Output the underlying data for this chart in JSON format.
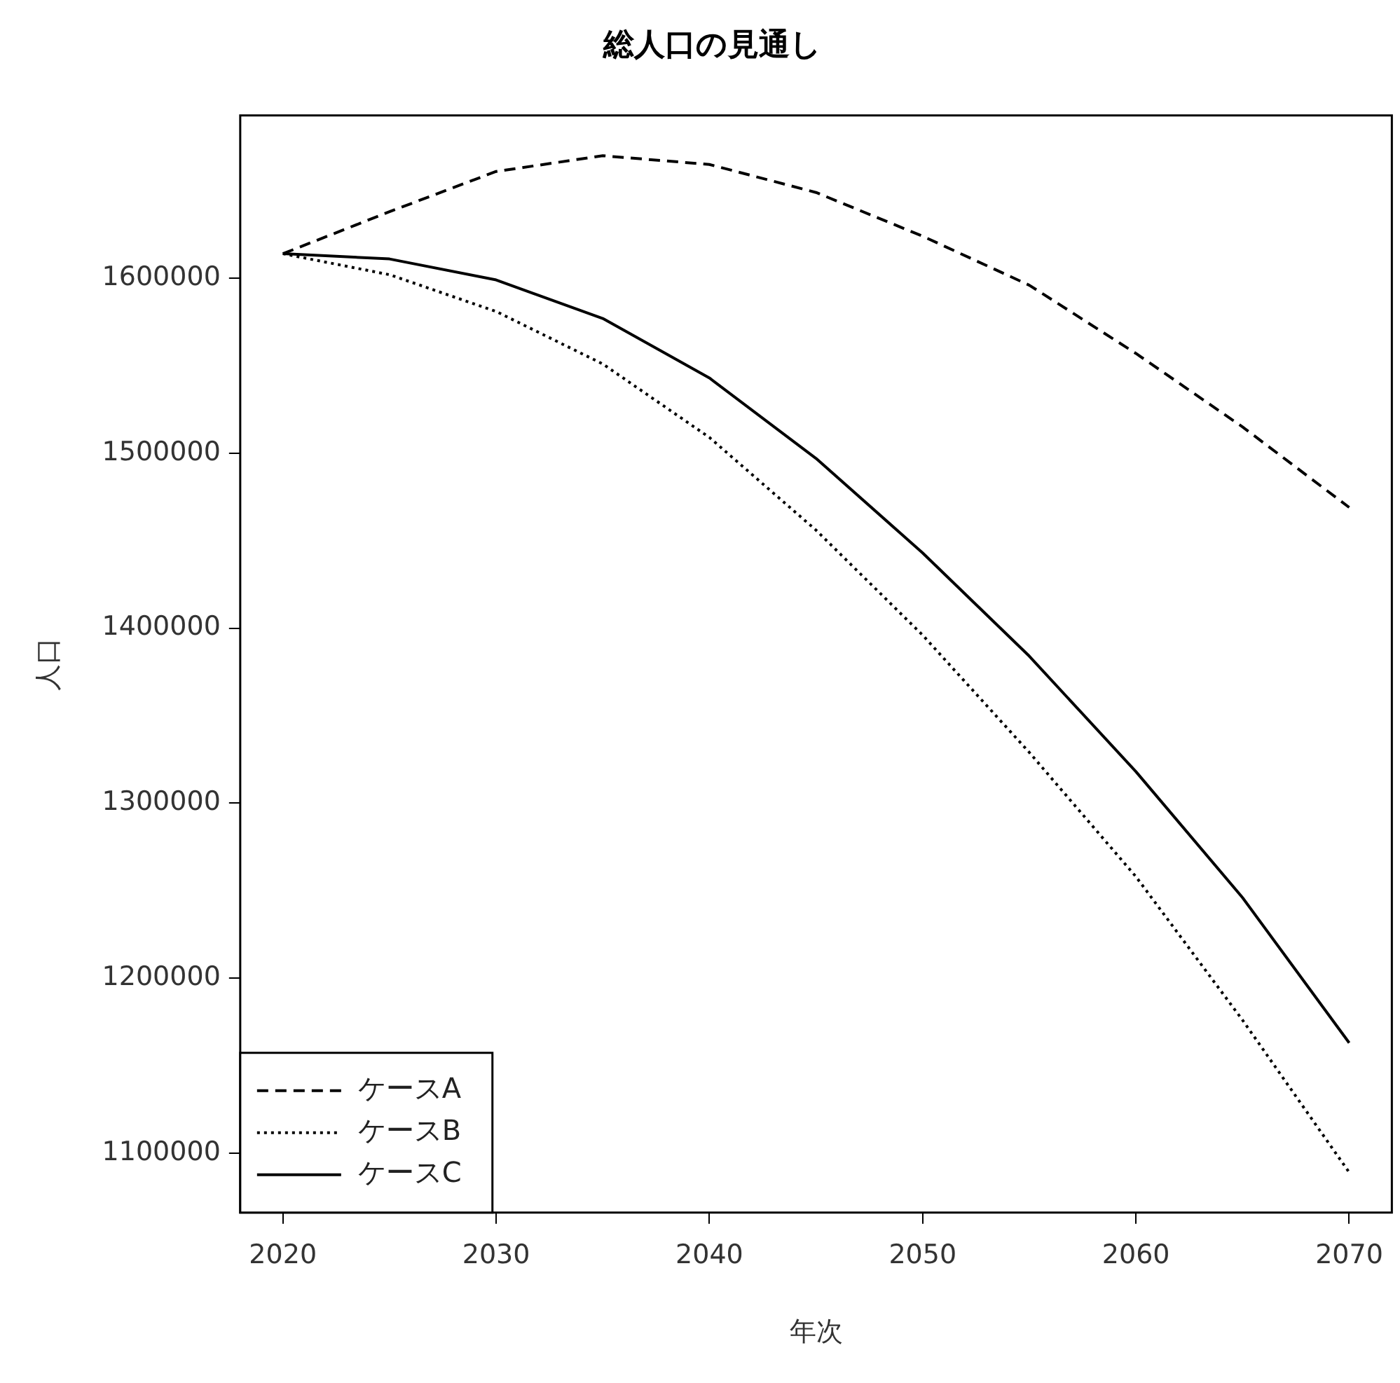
{
  "chart_data": {
    "type": "line",
    "title": "総人口の見通し",
    "xlabel": "年次",
    "ylabel": "人口",
    "x": [
      2020,
      2025,
      2030,
      2035,
      2040,
      2045,
      2050,
      2055,
      2060,
      2065,
      2070
    ],
    "series": [
      {
        "name": "ケースA",
        "color": "#000000",
        "line_style": "dashed",
        "values": [
          1614000,
          1638000,
          1661000,
          1670000,
          1665000,
          1649000,
          1624000,
          1596000,
          1557000,
          1515000,
          1469000
        ]
      },
      {
        "name": "ケースB",
        "color": "#000000",
        "line_style": "dotted",
        "values": [
          1614000,
          1602000,
          1581000,
          1551000,
          1509000,
          1456000,
          1396000,
          1329000,
          1258000,
          1176000,
          1089000
        ]
      },
      {
        "name": "ケースC",
        "color": "#000000",
        "line_style": "solid",
        "values": [
          1614000,
          1611000,
          1599000,
          1577000,
          1543000,
          1497000,
          1443000,
          1384000,
          1318000,
          1246000,
          1163000
        ]
      }
    ],
    "xlim": [
      2018,
      2072
    ],
    "xticks": [
      2020,
      2030,
      2040,
      2050,
      2060,
      2070
    ],
    "ylim": [
      1066000,
      1693000
    ],
    "yticks": [
      1100000,
      1200000,
      1300000,
      1400000,
      1500000,
      1600000
    ],
    "grid": false,
    "legend": "bottom left",
    "marker": "none"
  }
}
